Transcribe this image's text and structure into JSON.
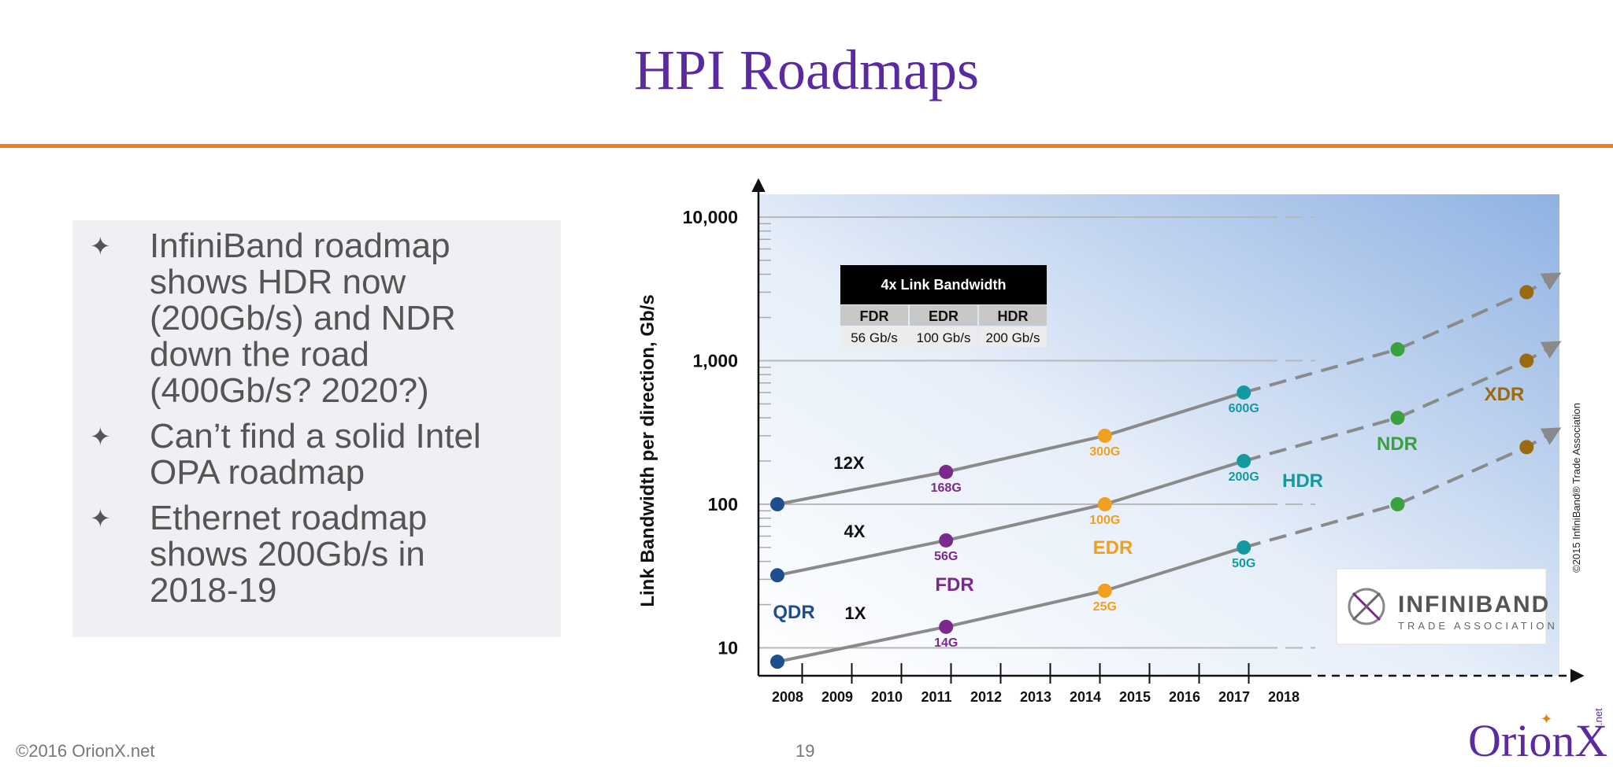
{
  "slide": {
    "title": "HPI Roadmaps",
    "footer_copyright": "©2016 OrionX.net",
    "page_number": "19",
    "logo_text": "OrionX",
    "logo_suffix": ".net"
  },
  "bullets": [
    {
      "mark": "✦",
      "lines": [
        "InfiniBand roadmap",
        "shows HDR now",
        "(200Gb/s) and NDR",
        "down the road",
        "(400Gb/s?  2020?)"
      ]
    },
    {
      "mark": "✦",
      "lines": [
        "Can’t find a solid Intel",
        "OPA roadmap"
      ]
    },
    {
      "mark": "✦",
      "lines": [
        "Ethernet roadmap",
        "shows 200Gb/s in",
        "2018-19"
      ]
    }
  ],
  "colors": {
    "title": "#5a2aa0",
    "rule": "#f08018",
    "qdr": "#1f4e8c",
    "fdr": "#7a2a8c",
    "edr": "#f0a020",
    "hdr": "#139aa0",
    "ndr": "#3aa040",
    "xdr": "#9a6a10",
    "line": "#8a8a8a"
  },
  "chart_data": {
    "type": "line",
    "ylabel": "Link Bandwidth per direction, Gb/s",
    "y_scale": "log",
    "ylim": [
      10,
      10000
    ],
    "y_ticks": [
      "10",
      "100",
      "1,000",
      "10,000"
    ],
    "x_ticks": [
      "2008",
      "2009",
      "2010",
      "2011",
      "2012",
      "2013",
      "2014",
      "2015",
      "2016",
      "2017",
      "2018"
    ],
    "series": [
      {
        "name": "12X",
        "solid_points": [
          {
            "x": 2008,
            "y": 100,
            "generation": "QDR"
          },
          {
            "x": 2011.4,
            "y": 168,
            "label": "168G",
            "generation": "FDR"
          },
          {
            "x": 2014.6,
            "y": 300,
            "label": "300G",
            "generation": "EDR"
          },
          {
            "x": 2017.4,
            "y": 600,
            "label": "600G",
            "generation": "HDR"
          }
        ],
        "dashed_points": [
          {
            "x": 2020.5,
            "y": 1200,
            "generation": "NDR"
          },
          {
            "x": 2023.1,
            "y": 3000,
            "generation": "XDR"
          }
        ]
      },
      {
        "name": "4X",
        "solid_points": [
          {
            "x": 2008,
            "y": 32,
            "generation": "QDR"
          },
          {
            "x": 2011.4,
            "y": 56,
            "label": "56G",
            "generation": "FDR"
          },
          {
            "x": 2014.6,
            "y": 100,
            "label": "100G",
            "generation": "EDR"
          },
          {
            "x": 2017.4,
            "y": 200,
            "label": "200G",
            "generation": "HDR"
          }
        ],
        "dashed_points": [
          {
            "x": 2020.5,
            "y": 400,
            "generation": "NDR"
          },
          {
            "x": 2023.1,
            "y": 1000,
            "generation": "XDR"
          }
        ]
      },
      {
        "name": "1X",
        "solid_points": [
          {
            "x": 2008,
            "y": 8,
            "generation": "QDR"
          },
          {
            "x": 2011.4,
            "y": 14,
            "label": "14G",
            "generation": "FDR"
          },
          {
            "x": 2014.6,
            "y": 25,
            "label": "25G",
            "generation": "EDR"
          },
          {
            "x": 2017.4,
            "y": 50,
            "label": "50G",
            "generation": "HDR"
          }
        ],
        "dashed_points": [
          {
            "x": 2020.5,
            "y": 100,
            "generation": "NDR"
          },
          {
            "x": 2023.1,
            "y": 250,
            "generation": "XDR"
          }
        ]
      }
    ],
    "generation_labels": [
      "QDR",
      "FDR",
      "EDR",
      "HDR",
      "NDR",
      "XDR"
    ],
    "bandwidth_table": {
      "title": "4x Link Bandwidth",
      "headers": [
        "FDR",
        "EDR",
        "HDR"
      ],
      "values": [
        "56 Gb/s",
        "100 Gb/s",
        "200 Gb/s"
      ]
    },
    "association_logo": {
      "name": "INFINIBAND",
      "tm": "™",
      "subtitle": "TRADE ASSOCIATION"
    },
    "copyright_note": "©2015 InfiniBand® Trade Association"
  }
}
